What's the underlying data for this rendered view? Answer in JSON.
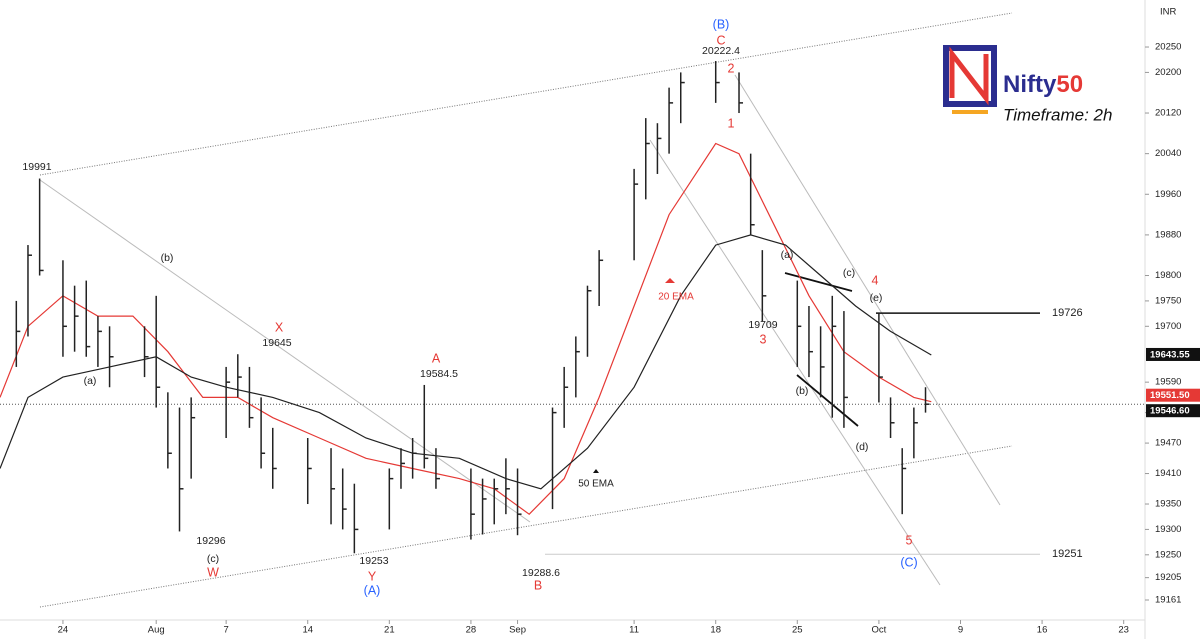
{
  "chart_data": {
    "type": "ohlc",
    "unit": "INR",
    "brand": [
      "Nifty",
      "50"
    ],
    "subtitle": "Timeframe: 2h",
    "xlim": [
      -5.4,
      92.4
    ],
    "ylim": [
      19121.6,
      20342.6
    ],
    "xticks": [
      {
        "value": 0,
        "label": "24"
      },
      {
        "value": 8,
        "label": "Aug"
      },
      {
        "value": 14,
        "label": "7"
      },
      {
        "value": 21,
        "label": "14"
      },
      {
        "value": 28,
        "label": "21"
      },
      {
        "value": 35,
        "label": "28"
      },
      {
        "value": 39,
        "label": "Sep"
      },
      {
        "value": 49,
        "label": "11"
      },
      {
        "value": 56,
        "label": "18"
      },
      {
        "value": 63,
        "label": "25"
      },
      {
        "value": 70,
        "label": "Oct"
      },
      {
        "value": 77,
        "label": "9"
      },
      {
        "value": 84,
        "label": "16"
      },
      {
        "value": 91,
        "label": "23"
      }
    ],
    "yticks": [
      20250,
      20200,
      20120,
      20040,
      19960,
      19880,
      19800,
      19750,
      19700,
      19590,
      19530,
      19470,
      19410,
      19350,
      19300,
      19250,
      19205,
      19161
    ],
    "bar_color": "#222222",
    "x": [
      -4,
      -3,
      -2,
      0,
      1,
      2,
      3,
      4,
      7,
      8,
      9,
      10,
      11,
      14,
      15,
      16,
      17,
      18,
      21,
      23,
      24,
      25,
      28,
      29,
      30,
      31,
      32,
      35,
      36,
      37,
      38,
      39,
      42,
      43,
      44,
      45,
      46,
      49,
      50,
      51,
      52,
      53,
      56,
      58,
      59,
      60,
      63,
      64,
      65,
      66,
      67,
      70,
      71,
      72,
      73,
      74
    ],
    "high": [
      19750,
      19860,
      19991,
      19830,
      19780,
      19790,
      19720,
      19700,
      19700,
      19760,
      19570,
      19540,
      19560,
      19620,
      19645,
      19620,
      19560,
      19500,
      19480,
      19460,
      19420,
      19390,
      19420,
      19460,
      19480,
      19584.5,
      19460,
      19420,
      19400,
      19400,
      19440,
      19420,
      19540,
      19620,
      19680,
      19780,
      19850,
      20010,
      20110,
      20100,
      20170,
      20200,
      20222.4,
      20200,
      20040,
      19850,
      19790,
      19740,
      19700,
      19760,
      19730,
      19726,
      19560,
      19460,
      19540,
      19580
    ],
    "low": [
      19620,
      19680,
      19800,
      19640,
      19650,
      19640,
      19620,
      19580,
      19600,
      19540,
      19420,
      19296,
      19400,
      19480,
      19560,
      19500,
      19420,
      19380,
      19350,
      19310,
      19300,
      19253,
      19300,
      19380,
      19400,
      19420,
      19380,
      19280,
      19290,
      19310,
      19330,
      19288.6,
      19340,
      19500,
      19560,
      19640,
      19740,
      19830,
      19950,
      20000,
      20040,
      20100,
      20140,
      20120,
      19880,
      19709,
      19620,
      19600,
      19560,
      19520,
      19500,
      19550,
      19480,
      19330,
      19440,
      19530
    ],
    "close": [
      19690,
      19840,
      19810,
      19700,
      19720,
      19660,
      19690,
      19640,
      19640,
      19580,
      19450,
      19380,
      19520,
      19590,
      19600,
      19520,
      19450,
      19420,
      19420,
      19380,
      19340,
      19300,
      19400,
      19430,
      19450,
      19440,
      19400,
      19330,
      19360,
      19380,
      19380,
      19330,
      19530,
      19580,
      19650,
      19770,
      19830,
      19980,
      20060,
      20070,
      20140,
      20180,
      20180,
      20140,
      19900,
      19760,
      19700,
      19650,
      19620,
      19700,
      19560,
      19600,
      19510,
      19420,
      19510,
      19546.6
    ],
    "series": [
      {
        "name": "20 EMA",
        "color": "#e53935",
        "x": [
          -5.4,
          -3,
          0,
          3,
          6,
          9,
          12,
          15,
          18,
          22,
          26,
          30,
          34,
          37,
          40,
          43,
          46,
          49,
          52,
          56,
          58,
          61,
          64,
          67,
          70,
          73,
          74.5
        ],
        "values": [
          19560,
          19700,
          19760,
          19720,
          19720,
          19650,
          19560,
          19560,
          19520,
          19480,
          19440,
          19420,
          19400,
          19380,
          19330,
          19400,
          19560,
          19740,
          19920,
          20060,
          20040,
          19900,
          19760,
          19650,
          19600,
          19560,
          19551.5
        ]
      },
      {
        "name": "50 EMA",
        "color": "#222222",
        "x": [
          -5.4,
          -3,
          0,
          4,
          8,
          11,
          14,
          18,
          22,
          26,
          30,
          34,
          38,
          41,
          45,
          49,
          53,
          56,
          59,
          62,
          65,
          68,
          71,
          74.5
        ],
        "values": [
          19420,
          19560,
          19600,
          19620,
          19640,
          19600,
          19580,
          19560,
          19530,
          19480,
          19450,
          19440,
          19400,
          19380,
          19460,
          19580,
          19760,
          19860,
          19880,
          19860,
          19800,
          19740,
          19690,
          19643.55
        ]
      }
    ],
    "levels": [
      19726,
      19251
    ],
    "badges": [
      {
        "value": 19643.55,
        "color": "#111111"
      },
      {
        "value": 19551.5,
        "label": "19551.50",
        "color": "#e53935"
      },
      {
        "value": 19546.6,
        "label": "19546.60",
        "color": "#111111"
      }
    ],
    "annotations": [
      {
        "text": "(B)",
        "color": "#2962ff"
      },
      {
        "text": "C",
        "color": "#e53935"
      },
      {
        "text": "20222.4",
        "color": "#222222"
      },
      {
        "text": "2",
        "color": "#e53935"
      },
      {
        "text": "1",
        "color": "#e53935"
      },
      {
        "text": "19991",
        "color": "#222222"
      },
      {
        "text": "(b)",
        "color": "#222222"
      },
      {
        "text": "X",
        "color": "#e53935"
      },
      {
        "text": "19645",
        "color": "#222222"
      },
      {
        "text": "(a)",
        "color": "#222222"
      },
      {
        "text": "A",
        "color": "#e53935"
      },
      {
        "text": "19584.5",
        "color": "#222222"
      },
      {
        "text": "19296",
        "color": "#222222"
      },
      {
        "text": "(c)",
        "color": "#222222"
      },
      {
        "text": "W",
        "color": "#e53935"
      },
      {
        "text": "19253",
        "color": "#222222"
      },
      {
        "text": "Y",
        "color": "#e53935"
      },
      {
        "text": "(A)",
        "color": "#2962ff"
      },
      {
        "text": "19288.6",
        "color": "#222222"
      },
      {
        "text": "B",
        "color": "#e53935"
      },
      {
        "text": "(a)",
        "color": "#222222"
      },
      {
        "text": "(c)",
        "color": "#222222"
      },
      {
        "text": "4",
        "color": "#e53935"
      },
      {
        "text": "(e)",
        "color": "#222222"
      },
      {
        "text": "19709",
        "color": "#222222"
      },
      {
        "text": "3",
        "color": "#e53935"
      },
      {
        "text": "(b)",
        "color": "#222222"
      },
      {
        "text": "(d)",
        "color": "#222222"
      },
      {
        "text": "5",
        "color": "#e53935"
      },
      {
        "text": "(C)",
        "color": "#2962ff"
      }
    ]
  }
}
